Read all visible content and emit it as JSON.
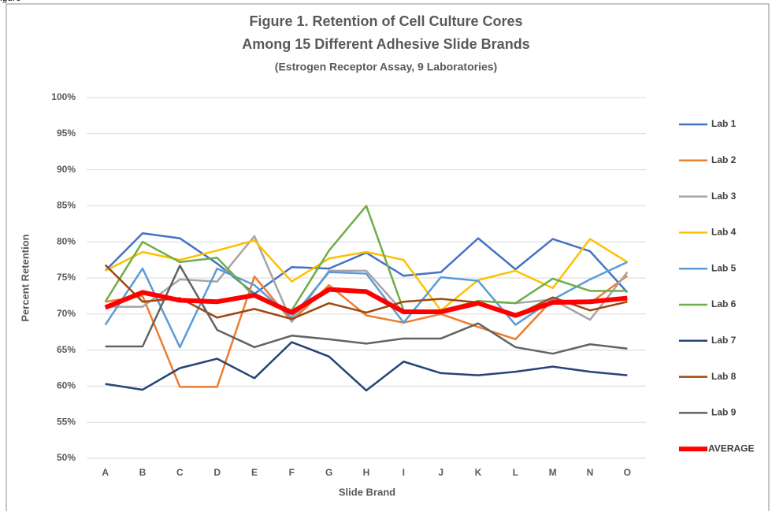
{
  "header_fragment": "igure",
  "chart_data": {
    "type": "line",
    "title": [
      "Figure 1.  Retention of Cell Culture Cores",
      "Among 15 Different Adhesive Slide Brands"
    ],
    "subtitle": "(Estrogen Receptor Assay, 9 Laboratories)",
    "x_label": "Slide Brand",
    "y_label": "Percent Retention",
    "categories": [
      "A",
      "B",
      "C",
      "D",
      "E",
      "F",
      "G",
      "H",
      "I",
      "J",
      "K",
      "L",
      "M",
      "N",
      "O"
    ],
    "ylim": [
      50,
      100
    ],
    "yticks": [
      {
        "value": 50,
        "label": "50%"
      },
      {
        "value": 55,
        "label": "55%"
      },
      {
        "value": 60,
        "label": "60%"
      },
      {
        "value": 65,
        "label": "65%"
      },
      {
        "value": 70,
        "label": "70%"
      },
      {
        "value": 75,
        "label": "75%"
      },
      {
        "value": 80,
        "label": "80%"
      },
      {
        "value": 85,
        "label": "85%"
      },
      {
        "value": 90,
        "label": "90%"
      },
      {
        "value": 95,
        "label": "95%"
      },
      {
        "value": 100,
        "label": "100%"
      }
    ],
    "grid": true,
    "legend": "right",
    "series": [
      {
        "name": "Lab 1",
        "color": "#4472c4",
        "values": [
          76.0,
          81.2,
          80.5,
          77.0,
          72.8,
          76.5,
          76.3,
          78.5,
          75.3,
          75.8,
          80.5,
          76.2,
          80.4,
          78.7,
          73.0
        ]
      },
      {
        "name": "Lab 2",
        "color": "#ed7d31",
        "values": [
          71.7,
          72.5,
          59.9,
          59.9,
          75.2,
          69.0,
          74.0,
          69.8,
          68.8,
          70.0,
          68.2,
          66.5,
          72.0,
          71.5,
          75.3
        ]
      },
      {
        "name": "Lab 3",
        "color": "#a5a5a5",
        "values": [
          71.0,
          71.0,
          74.8,
          74.5,
          80.8,
          68.9,
          76.0,
          76.0,
          70.2,
          70.5,
          71.8,
          71.5,
          72.0,
          69.2,
          75.8
        ]
      },
      {
        "name": "Lab 4",
        "color": "#ffc000",
        "values": [
          76.0,
          78.6,
          77.5,
          78.8,
          80.2,
          74.5,
          77.7,
          78.6,
          77.5,
          70.5,
          74.7,
          76.0,
          73.6,
          80.4,
          77.2
        ]
      },
      {
        "name": "Lab 5",
        "color": "#5b9bd5",
        "values": [
          68.5,
          76.3,
          65.4,
          76.3,
          74.0,
          69.5,
          75.8,
          75.6,
          68.8,
          75.1,
          74.6,
          68.5,
          72.0,
          74.8,
          77.2
        ]
      },
      {
        "name": "Lab 6",
        "color": "#70ad47",
        "values": [
          71.7,
          80.0,
          77.2,
          77.8,
          72.4,
          70.5,
          78.8,
          85.0,
          70.5,
          70.5,
          71.8,
          71.5,
          74.9,
          73.2,
          73.2
        ]
      },
      {
        "name": "Lab 7",
        "color": "#264478",
        "values": [
          60.3,
          59.5,
          62.5,
          63.8,
          61.1,
          66.1,
          64.1,
          59.4,
          63.4,
          61.8,
          61.5,
          62.0,
          62.7,
          62.0,
          61.5
        ]
      },
      {
        "name": "Lab 8",
        "color": "#9e480e",
        "values": [
          76.8,
          71.7,
          72.2,
          69.5,
          70.7,
          69.3,
          71.5,
          70.2,
          71.7,
          72.1,
          71.6,
          69.8,
          72.3,
          70.5,
          71.7
        ]
      },
      {
        "name": "Lab 9",
        "color": "#636363",
        "values": [
          65.5,
          65.5,
          76.7,
          67.8,
          65.4,
          67.0,
          66.5,
          65.9,
          66.6,
          66.6,
          68.7,
          65.4,
          64.5,
          65.8,
          65.2
        ]
      },
      {
        "name": "AVERAGE",
        "color": "#ff0000",
        "values": [
          70.9,
          73.0,
          71.9,
          71.7,
          72.6,
          70.2,
          73.4,
          73.1,
          70.3,
          70.3,
          71.5,
          69.8,
          71.6,
          71.7,
          72.2
        ]
      }
    ]
  }
}
